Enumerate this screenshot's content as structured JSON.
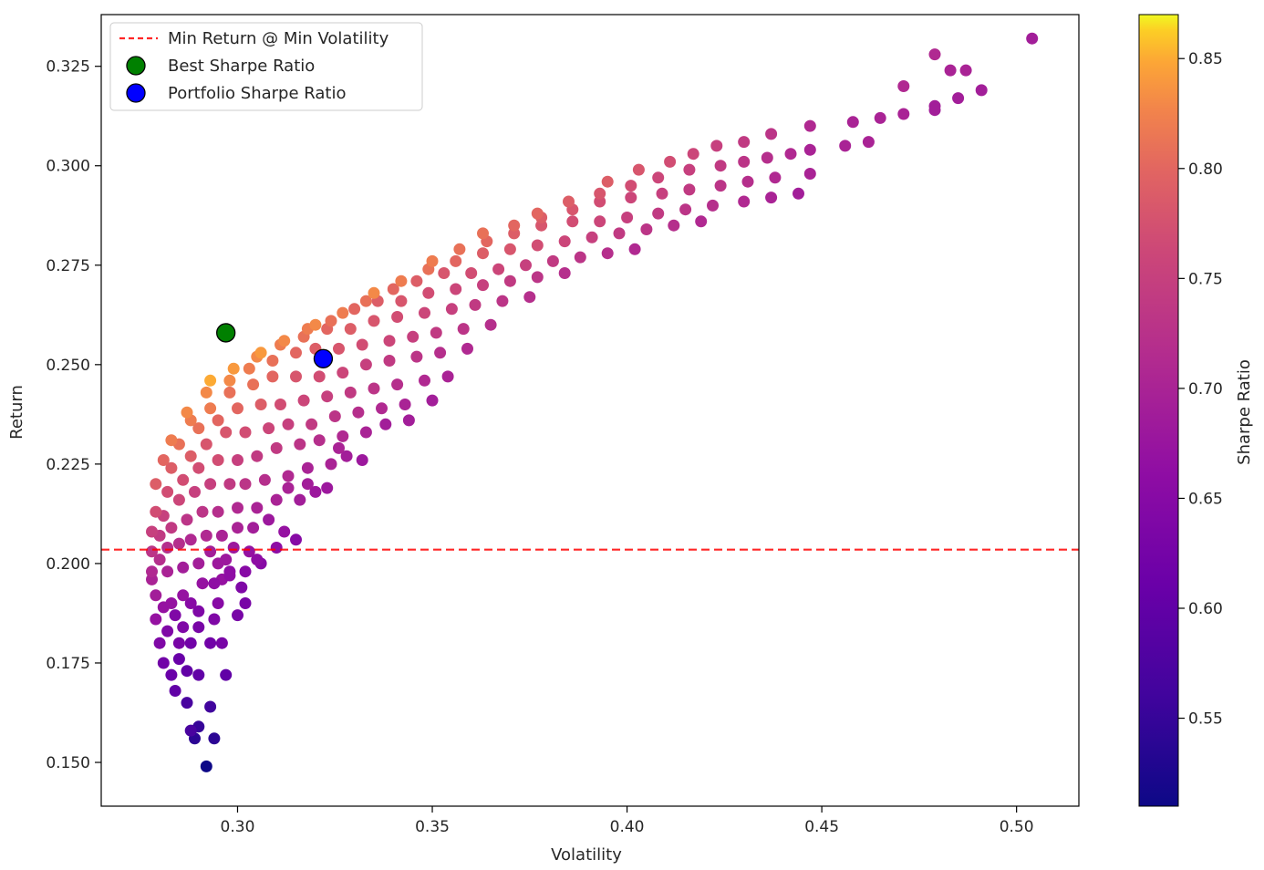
{
  "chart_data": {
    "type": "scatter",
    "xlabel": "Volatility",
    "ylabel": "Return",
    "xlim": [
      0.265,
      0.516
    ],
    "ylim": [
      0.139,
      0.338
    ],
    "x_ticks": [
      0.3,
      0.35,
      0.4,
      0.45,
      0.5
    ],
    "x_tick_labels": [
      "0.30",
      "0.35",
      "0.40",
      "0.45",
      "0.50"
    ],
    "y_ticks": [
      0.15,
      0.175,
      0.2,
      0.225,
      0.25,
      0.275,
      0.3,
      0.325
    ],
    "y_tick_labels": [
      "0.150",
      "0.175",
      "0.200",
      "0.225",
      "0.250",
      "0.275",
      "0.300",
      "0.325"
    ],
    "grid": false,
    "legend_position": "top-left",
    "colormap": "plasma",
    "colorbar": {
      "label": "Sharpe Ratio",
      "range": [
        0.51,
        0.87
      ],
      "ticks": [
        0.55,
        0.6,
        0.65,
        0.7,
        0.75,
        0.8,
        0.85
      ],
      "tick_labels": [
        "0.55",
        "0.60",
        "0.65",
        "0.70",
        "0.75",
        "0.80",
        "0.85"
      ]
    },
    "min_return_line": {
      "label": "Min Return @ Min Volatility",
      "y": 0.2035,
      "color": "#ff0000",
      "style": "dashed"
    },
    "best_sharpe": {
      "label": "Best Sharpe Ratio",
      "x": 0.297,
      "y": 0.258,
      "color": "#008000"
    },
    "portfolio_sharpe": {
      "label": "Portfolio Sharpe Ratio",
      "x": 0.322,
      "y": 0.2515,
      "color": "#0000ff"
    },
    "portfolios": {
      "x": [
        0.292,
        0.289,
        0.294,
        0.29,
        0.293,
        0.288,
        0.287,
        0.29,
        0.284,
        0.287,
        0.283,
        0.285,
        0.281,
        0.288,
        0.285,
        0.29,
        0.28,
        0.282,
        0.286,
        0.284,
        0.29,
        0.288,
        0.297,
        0.296,
        0.294,
        0.293,
        0.279,
        0.281,
        0.283,
        0.286,
        0.291,
        0.295,
        0.3,
        0.302,
        0.301,
        0.298,
        0.296,
        0.294,
        0.279,
        0.278,
        0.282,
        0.286,
        0.29,
        0.293,
        0.297,
        0.299,
        0.303,
        0.306,
        0.302,
        0.298,
        0.295,
        0.278,
        0.28,
        0.282,
        0.285,
        0.288,
        0.292,
        0.296,
        0.3,
        0.304,
        0.308,
        0.312,
        0.315,
        0.31,
        0.305,
        0.278,
        0.28,
        0.283,
        0.287,
        0.291,
        0.295,
        0.3,
        0.305,
        0.31,
        0.316,
        0.32,
        0.323,
        0.318,
        0.313,
        0.278,
        0.281,
        0.285,
        0.289,
        0.293,
        0.298,
        0.302,
        0.307,
        0.313,
        0.318,
        0.324,
        0.328,
        0.332,
        0.326,
        0.279,
        0.282,
        0.286,
        0.29,
        0.295,
        0.3,
        0.305,
        0.31,
        0.316,
        0.321,
        0.327,
        0.333,
        0.338,
        0.344,
        0.279,
        0.283,
        0.288,
        0.292,
        0.297,
        0.302,
        0.308,
        0.313,
        0.319,
        0.325,
        0.331,
        0.337,
        0.343,
        0.35,
        0.281,
        0.285,
        0.29,
        0.295,
        0.3,
        0.306,
        0.311,
        0.317,
        0.323,
        0.329,
        0.335,
        0.341,
        0.348,
        0.354,
        0.283,
        0.288,
        0.293,
        0.298,
        0.304,
        0.309,
        0.315,
        0.321,
        0.327,
        0.333,
        0.339,
        0.346,
        0.352,
        0.359,
        0.287,
        0.292,
        0.298,
        0.303,
        0.309,
        0.315,
        0.32,
        0.326,
        0.332,
        0.339,
        0.345,
        0.351,
        0.358,
        0.365,
        0.293,
        0.299,
        0.305,
        0.311,
        0.317,
        0.323,
        0.329,
        0.335,
        0.341,
        0.348,
        0.355,
        0.361,
        0.368,
        0.375,
        0.306,
        0.312,
        0.318,
        0.324,
        0.33,
        0.336,
        0.342,
        0.349,
        0.356,
        0.363,
        0.37,
        0.377,
        0.384,
        0.32,
        0.327,
        0.333,
        0.34,
        0.346,
        0.353,
        0.36,
        0.367,
        0.374,
        0.381,
        0.388,
        0.395,
        0.402,
        0.335,
        0.342,
        0.349,
        0.356,
        0.363,
        0.37,
        0.377,
        0.384,
        0.391,
        0.398,
        0.405,
        0.412,
        0.419,
        0.35,
        0.357,
        0.364,
        0.371,
        0.378,
        0.386,
        0.393,
        0.4,
        0.408,
        0.415,
        0.422,
        0.43,
        0.437,
        0.444,
        0.363,
        0.371,
        0.378,
        0.386,
        0.393,
        0.401,
        0.409,
        0.416,
        0.424,
        0.431,
        0.438,
        0.447,
        0.377,
        0.385,
        0.393,
        0.401,
        0.408,
        0.416,
        0.424,
        0.43,
        0.436,
        0.442,
        0.447,
        0.456,
        0.462,
        0.395,
        0.403,
        0.411,
        0.417,
        0.423,
        0.43,
        0.437,
        0.447,
        0.458,
        0.465,
        0.471,
        0.479,
        0.485,
        0.491,
        0.504,
        0.479,
        0.483,
        0.487,
        0.479,
        0.471
      ],
      "y": [
        0.149,
        0.156,
        0.156,
        0.159,
        0.164,
        0.158,
        0.165,
        0.172,
        0.168,
        0.173,
        0.172,
        0.176,
        0.175,
        0.18,
        0.18,
        0.184,
        0.18,
        0.183,
        0.184,
        0.187,
        0.188,
        0.19,
        0.172,
        0.18,
        0.186,
        0.18,
        0.186,
        0.189,
        0.19,
        0.192,
        0.195,
        0.19,
        0.187,
        0.19,
        0.194,
        0.198,
        0.196,
        0.195,
        0.192,
        0.196,
        0.198,
        0.199,
        0.2,
        0.203,
        0.201,
        0.204,
        0.203,
        0.2,
        0.198,
        0.197,
        0.2,
        0.198,
        0.201,
        0.204,
        0.205,
        0.206,
        0.207,
        0.207,
        0.209,
        0.209,
        0.211,
        0.208,
        0.206,
        0.204,
        0.201,
        0.203,
        0.207,
        0.209,
        0.211,
        0.213,
        0.213,
        0.214,
        0.214,
        0.216,
        0.216,
        0.218,
        0.219,
        0.22,
        0.219,
        0.208,
        0.212,
        0.216,
        0.218,
        0.22,
        0.22,
        0.22,
        0.221,
        0.222,
        0.224,
        0.225,
        0.227,
        0.226,
        0.229,
        0.213,
        0.218,
        0.221,
        0.224,
        0.226,
        0.226,
        0.227,
        0.229,
        0.23,
        0.231,
        0.232,
        0.233,
        0.235,
        0.236,
        0.22,
        0.224,
        0.227,
        0.23,
        0.233,
        0.233,
        0.234,
        0.235,
        0.235,
        0.237,
        0.238,
        0.239,
        0.24,
        0.241,
        0.226,
        0.23,
        0.234,
        0.236,
        0.239,
        0.24,
        0.24,
        0.241,
        0.242,
        0.243,
        0.244,
        0.245,
        0.246,
        0.247,
        0.231,
        0.236,
        0.239,
        0.243,
        0.245,
        0.247,
        0.247,
        0.247,
        0.248,
        0.25,
        0.251,
        0.252,
        0.253,
        0.254,
        0.238,
        0.243,
        0.246,
        0.249,
        0.251,
        0.253,
        0.254,
        0.254,
        0.255,
        0.256,
        0.257,
        0.258,
        0.259,
        0.26,
        0.246,
        0.249,
        0.252,
        0.255,
        0.257,
        0.259,
        0.259,
        0.261,
        0.262,
        0.263,
        0.264,
        0.265,
        0.266,
        0.267,
        0.253,
        0.256,
        0.259,
        0.261,
        0.264,
        0.266,
        0.266,
        0.268,
        0.269,
        0.27,
        0.271,
        0.272,
        0.273,
        0.26,
        0.263,
        0.266,
        0.269,
        0.271,
        0.273,
        0.273,
        0.274,
        0.275,
        0.276,
        0.277,
        0.278,
        0.279,
        0.268,
        0.271,
        0.274,
        0.276,
        0.278,
        0.279,
        0.28,
        0.281,
        0.282,
        0.283,
        0.284,
        0.285,
        0.286,
        0.276,
        0.279,
        0.281,
        0.283,
        0.285,
        0.286,
        0.286,
        0.287,
        0.288,
        0.289,
        0.29,
        0.291,
        0.292,
        0.293,
        0.283,
        0.285,
        0.287,
        0.289,
        0.291,
        0.292,
        0.293,
        0.294,
        0.295,
        0.296,
        0.297,
        0.298,
        0.288,
        0.291,
        0.293,
        0.295,
        0.297,
        0.299,
        0.3,
        0.301,
        0.302,
        0.303,
        0.304,
        0.305,
        0.306,
        0.296,
        0.299,
        0.301,
        0.303,
        0.305,
        0.306,
        0.308,
        0.31,
        0.311,
        0.312,
        0.313,
        0.315,
        0.317,
        0.319,
        0.332,
        0.328,
        0.324,
        0.324,
        0.314,
        0.32
      ],
      "sharpe": [
        0.51,
        0.54,
        0.54,
        0.55,
        0.56,
        0.57,
        0.57,
        0.6,
        0.6,
        0.6,
        0.61,
        0.61,
        0.62,
        0.62,
        0.63,
        0.63,
        0.64,
        0.64,
        0.64,
        0.64,
        0.64,
        0.65,
        0.6,
        0.63,
        0.64,
        0.62,
        0.67,
        0.67,
        0.67,
        0.67,
        0.67,
        0.65,
        0.63,
        0.63,
        0.64,
        0.66,
        0.67,
        0.66,
        0.69,
        0.7,
        0.7,
        0.69,
        0.69,
        0.69,
        0.68,
        0.68,
        0.67,
        0.65,
        0.65,
        0.66,
        0.68,
        0.71,
        0.72,
        0.72,
        0.72,
        0.71,
        0.71,
        0.7,
        0.7,
        0.69,
        0.68,
        0.67,
        0.65,
        0.66,
        0.66,
        0.73,
        0.74,
        0.74,
        0.73,
        0.73,
        0.72,
        0.71,
        0.7,
        0.7,
        0.69,
        0.68,
        0.68,
        0.69,
        0.7,
        0.75,
        0.75,
        0.76,
        0.75,
        0.75,
        0.74,
        0.73,
        0.72,
        0.71,
        0.7,
        0.7,
        0.69,
        0.68,
        0.7,
        0.77,
        0.77,
        0.77,
        0.77,
        0.77,
        0.75,
        0.74,
        0.74,
        0.73,
        0.72,
        0.71,
        0.7,
        0.69,
        0.69,
        0.79,
        0.79,
        0.79,
        0.78,
        0.78,
        0.77,
        0.76,
        0.75,
        0.74,
        0.73,
        0.72,
        0.71,
        0.7,
        0.69,
        0.8,
        0.81,
        0.81,
        0.8,
        0.8,
        0.79,
        0.77,
        0.76,
        0.75,
        0.74,
        0.73,
        0.72,
        0.71,
        0.7,
        0.82,
        0.82,
        0.82,
        0.81,
        0.81,
        0.8,
        0.78,
        0.77,
        0.76,
        0.75,
        0.74,
        0.73,
        0.72,
        0.71,
        0.83,
        0.83,
        0.83,
        0.82,
        0.81,
        0.8,
        0.79,
        0.78,
        0.77,
        0.76,
        0.75,
        0.74,
        0.73,
        0.72,
        0.85,
        0.84,
        0.83,
        0.82,
        0.81,
        0.8,
        0.79,
        0.78,
        0.77,
        0.76,
        0.75,
        0.74,
        0.73,
        0.72,
        0.84,
        0.83,
        0.82,
        0.81,
        0.8,
        0.79,
        0.78,
        0.77,
        0.76,
        0.75,
        0.74,
        0.73,
        0.72,
        0.83,
        0.82,
        0.81,
        0.8,
        0.79,
        0.78,
        0.77,
        0.76,
        0.75,
        0.74,
        0.73,
        0.72,
        0.71,
        0.83,
        0.82,
        0.81,
        0.8,
        0.79,
        0.78,
        0.77,
        0.76,
        0.75,
        0.74,
        0.73,
        0.72,
        0.71,
        0.82,
        0.81,
        0.8,
        0.79,
        0.78,
        0.77,
        0.76,
        0.75,
        0.74,
        0.73,
        0.72,
        0.71,
        0.7,
        0.69,
        0.81,
        0.8,
        0.79,
        0.78,
        0.77,
        0.76,
        0.75,
        0.74,
        0.73,
        0.72,
        0.71,
        0.7,
        0.8,
        0.79,
        0.78,
        0.77,
        0.76,
        0.75,
        0.74,
        0.73,
        0.72,
        0.71,
        0.7,
        0.7,
        0.7,
        0.79,
        0.78,
        0.77,
        0.76,
        0.75,
        0.74,
        0.73,
        0.71,
        0.7,
        0.7,
        0.7,
        0.69,
        0.69,
        0.69,
        0.69,
        0.71,
        0.7,
        0.7,
        0.69,
        0.71
      ]
    }
  }
}
